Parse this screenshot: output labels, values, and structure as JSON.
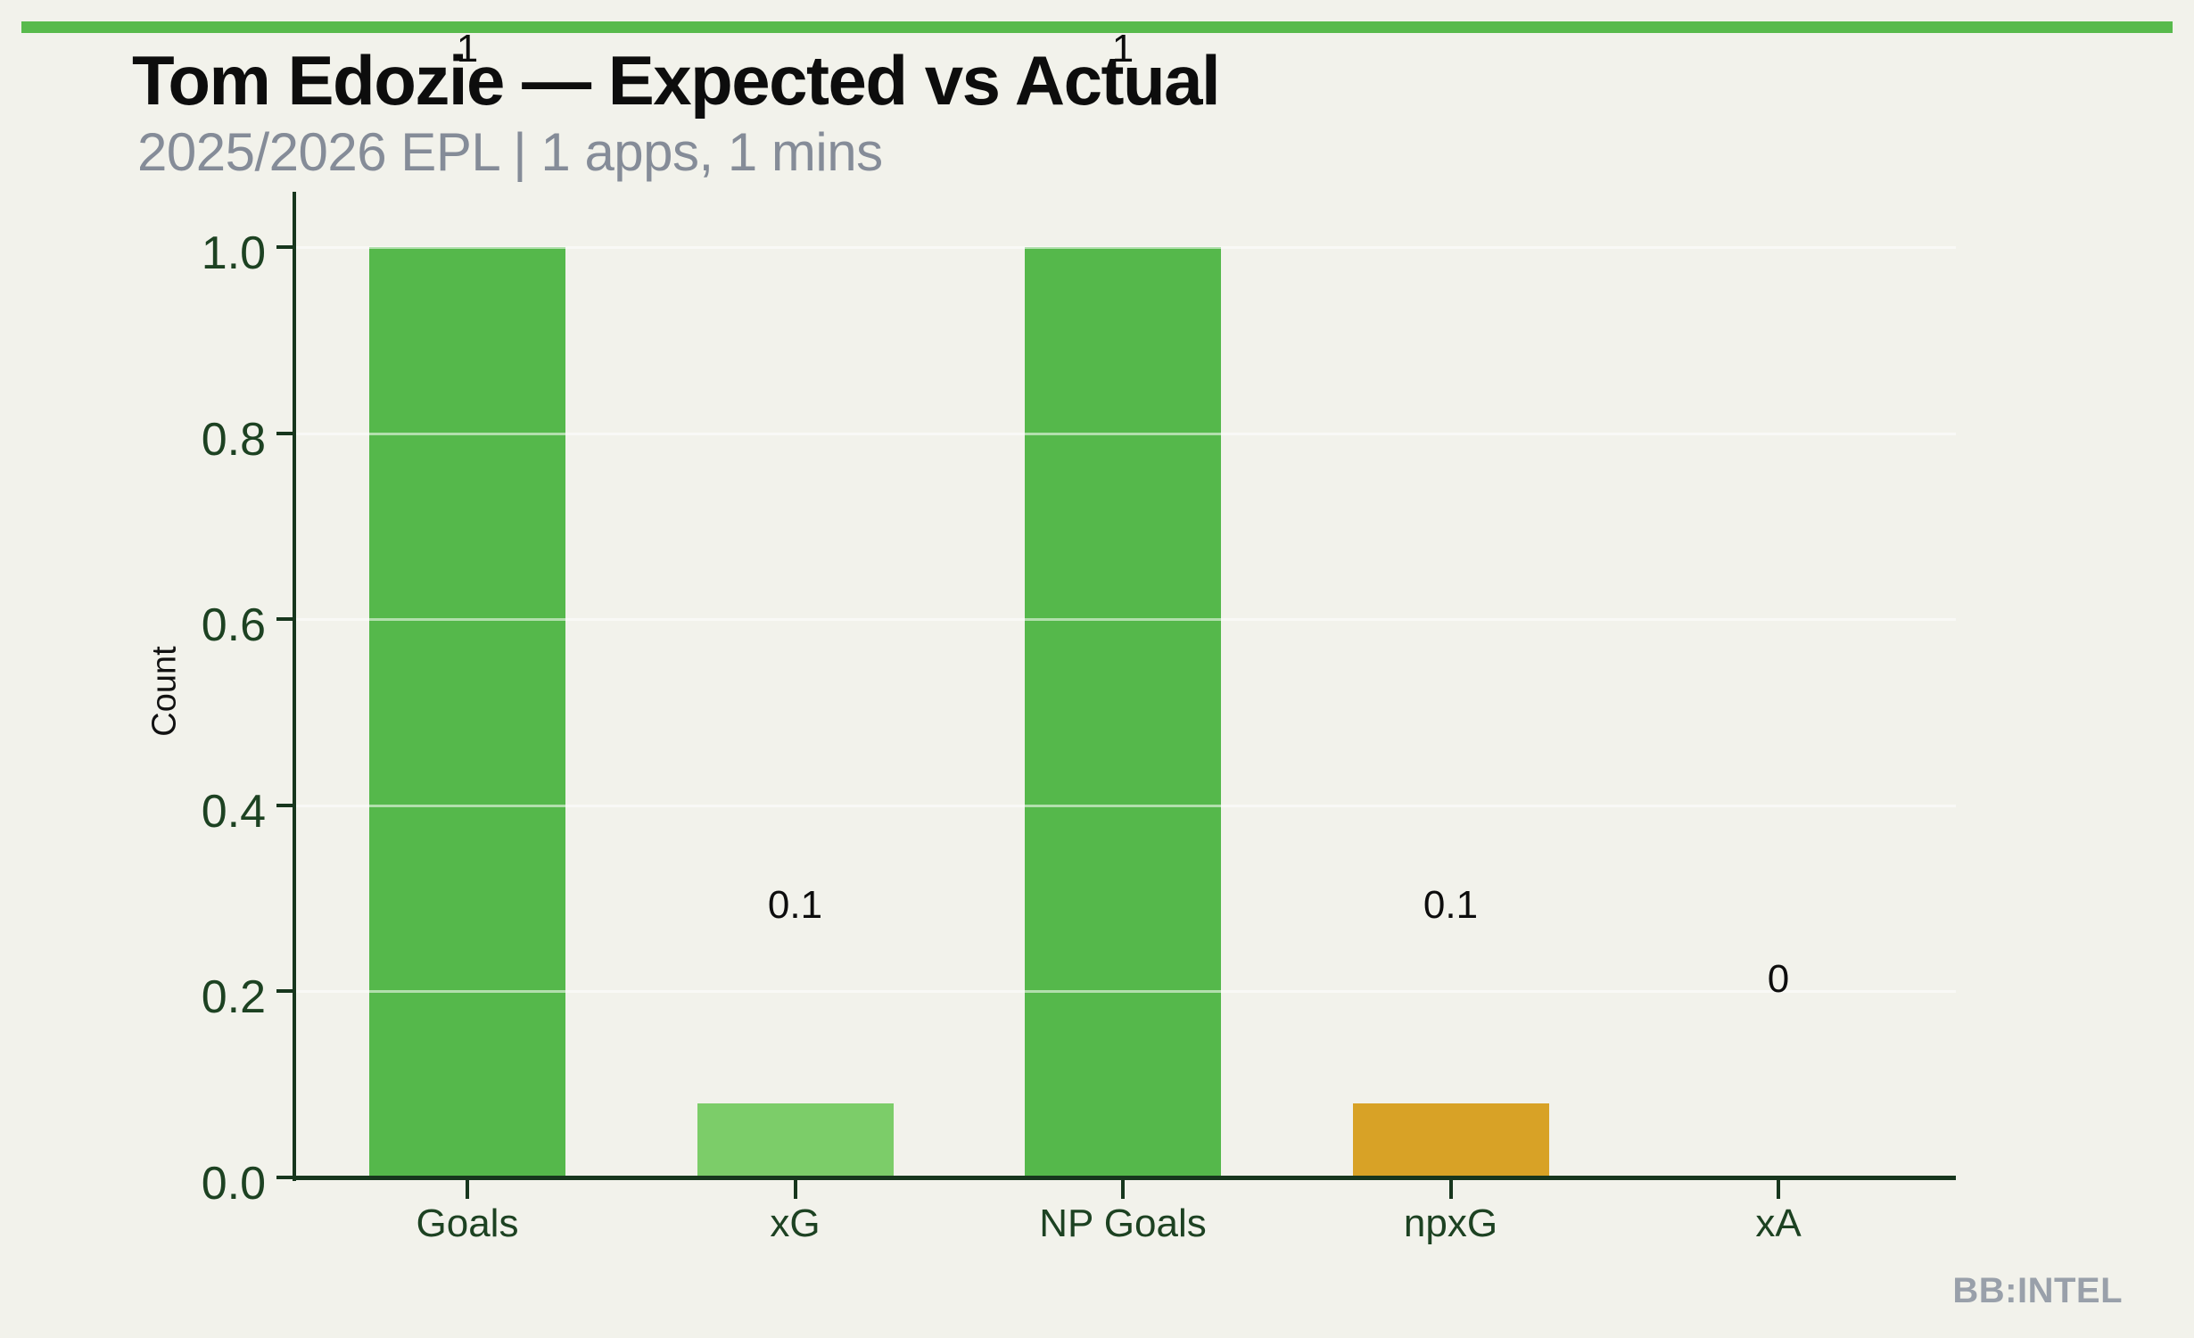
{
  "page": {
    "background": "#f2f2eb",
    "top_strip_color": "#58ba4c"
  },
  "header": {
    "title": "Tom Edozie — Expected vs Actual",
    "subtitle": "2025/2026 EPL | 1 apps, 1 mins",
    "title_color": "#0d0d0d",
    "subtitle_color": "#858c98"
  },
  "watermark": {
    "label": "BB:INTEL",
    "color": "#99a0aa"
  },
  "chart_data": {
    "type": "bar",
    "title": "Tom Edozie — Expected vs Actual",
    "subtitle": "2025/2026 EPL | 1 apps, 1 mins",
    "xlabel": "",
    "ylabel": "Count",
    "categories": [
      "Goals",
      "xG",
      "NP Goals",
      "npxG",
      "xA"
    ],
    "values": [
      1,
      0.08,
      1,
      0.08,
      0
    ],
    "value_labels": [
      "1",
      "0.1",
      "1",
      "0.1",
      "0"
    ],
    "bar_colors": [
      "#55b84b",
      "#7ccd69",
      "#55b84b",
      "#d8a226",
      "none"
    ],
    "ylim": [
      0,
      1.0
    ],
    "yticks": [
      0.0,
      0.2,
      0.4,
      0.6,
      0.8,
      1.0
    ],
    "grid": true,
    "legend": "none",
    "colors": {
      "axis_line": "#17361d",
      "tick_text": "#1d4222",
      "value_label_text": "#0d0d0d",
      "ylabel_text": "#111111",
      "gridline": "rgba(255,255,255,0.55)"
    }
  }
}
